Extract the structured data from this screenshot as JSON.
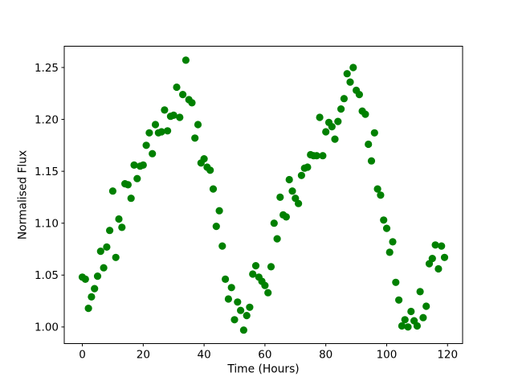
{
  "chart_data": {
    "type": "scatter",
    "title": "",
    "xlabel": "Time (Hours)",
    "ylabel": "Normalised Flux",
    "legend": null,
    "grid": false,
    "marker_color": "#008000",
    "background_color": "#ffffff",
    "axis_color": "#000000",
    "xlim": [
      -5.95,
      124.95
    ],
    "ylim": [
      0.984,
      1.2705
    ],
    "x_ticks": [
      0,
      20,
      40,
      60,
      80,
      100,
      120
    ],
    "x_tick_labels": [
      "0",
      "20",
      "40",
      "60",
      "80",
      "100",
      "120"
    ],
    "y_ticks": [
      1.0,
      1.05,
      1.1,
      1.15,
      1.2,
      1.25
    ],
    "y_tick_labels": [
      "1.00",
      "1.05",
      "1.10",
      "1.15",
      "1.20",
      "1.25"
    ],
    "x": [
      0,
      1,
      2,
      3,
      4,
      5,
      6,
      7,
      8,
      9,
      10,
      11,
      12,
      13,
      14,
      15,
      16,
      17,
      18,
      19,
      20,
      21,
      22,
      23,
      24,
      25,
      26,
      27,
      28,
      29,
      30,
      31,
      32,
      33,
      34,
      35,
      36,
      37,
      38,
      39,
      40,
      41,
      42,
      43,
      44,
      45,
      46,
      47,
      48,
      49,
      50,
      51,
      52,
      53,
      54,
      55,
      56,
      57,
      58,
      59,
      60,
      61,
      62,
      63,
      64,
      65,
      66,
      67,
      68,
      69,
      70,
      71,
      72,
      73,
      74,
      75,
      76,
      77,
      78,
      79,
      80,
      81,
      82,
      83,
      84,
      85,
      86,
      87,
      88,
      89,
      90,
      91,
      92,
      93,
      94,
      95,
      96,
      97,
      98,
      99,
      100,
      101,
      102,
      103,
      104,
      105,
      106,
      107,
      108,
      109,
      110,
      111,
      112,
      113,
      114,
      115,
      116,
      117,
      118,
      119
    ],
    "flux": [
      1.048,
      1.046,
      1.018,
      1.029,
      1.037,
      1.049,
      1.073,
      1.057,
      1.077,
      1.093,
      1.131,
      1.067,
      1.104,
      1.096,
      1.138,
      1.137,
      1.124,
      1.156,
      1.143,
      1.155,
      1.156,
      1.175,
      1.187,
      1.167,
      1.195,
      1.187,
      1.188,
      1.209,
      1.189,
      1.203,
      1.204,
      1.231,
      1.202,
      1.224,
      1.257,
      1.219,
      1.216,
      1.182,
      1.195,
      1.158,
      1.162,
      1.154,
      1.151,
      1.133,
      1.097,
      1.112,
      1.078,
      1.046,
      1.027,
      1.038,
      1.007,
      1.024,
      1.016,
      0.997,
      1.011,
      1.019,
      1.051,
      1.059,
      1.048,
      1.044,
      1.04,
      1.033,
      1.058,
      1.1,
      1.085,
      1.125,
      1.108,
      1.106,
      1.142,
      1.131,
      1.124,
      1.119,
      1.146,
      1.153,
      1.154,
      1.166,
      1.165,
      1.165,
      1.202,
      1.165,
      1.188,
      1.197,
      1.193,
      1.181,
      1.198,
      1.21,
      1.22,
      1.244,
      1.236,
      1.25,
      1.228,
      1.224,
      1.208,
      1.205,
      1.176,
      1.16,
      1.187,
      1.133,
      1.127,
      1.103,
      1.095,
      1.072,
      1.082,
      1.043,
      1.026,
      1.001,
      1.007,
      1.0,
      1.015,
      1.006,
      1.001,
      1.034,
      1.009,
      1.02,
      1.061,
      1.066,
      1.079,
      1.056,
      1.078,
      1.067
    ]
  }
}
